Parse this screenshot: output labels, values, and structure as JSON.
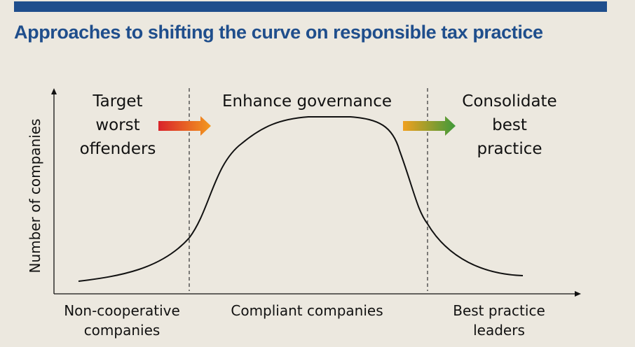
{
  "title": "Approaches to shifting the curve on responsible tax practice",
  "y_axis_label": "Number of companies",
  "phases": [
    {
      "lines": [
        "Target",
        "worst",
        "offenders"
      ]
    },
    {
      "lines": [
        "Enhance governance"
      ]
    },
    {
      "lines": [
        "Consolidate",
        "best",
        "practice"
      ]
    }
  ],
  "categories": [
    {
      "lines": [
        "Non-cooperative",
        "companies"
      ]
    },
    {
      "lines": [
        "Compliant companies"
      ]
    },
    {
      "lines": [
        "Best practice",
        "leaders"
      ]
    }
  ],
  "colors": {
    "title": "#1f4e8c",
    "top_bar": "#1f4e8c",
    "background": "#ece8df",
    "arrow1_start": "#d9232a",
    "arrow1_end": "#f39a1f",
    "arrow2_start": "#f0a020",
    "arrow2_end": "#3f9a3a"
  },
  "icons": [
    "gradient-arrow-red-orange",
    "gradient-arrow-orange-green"
  ]
}
